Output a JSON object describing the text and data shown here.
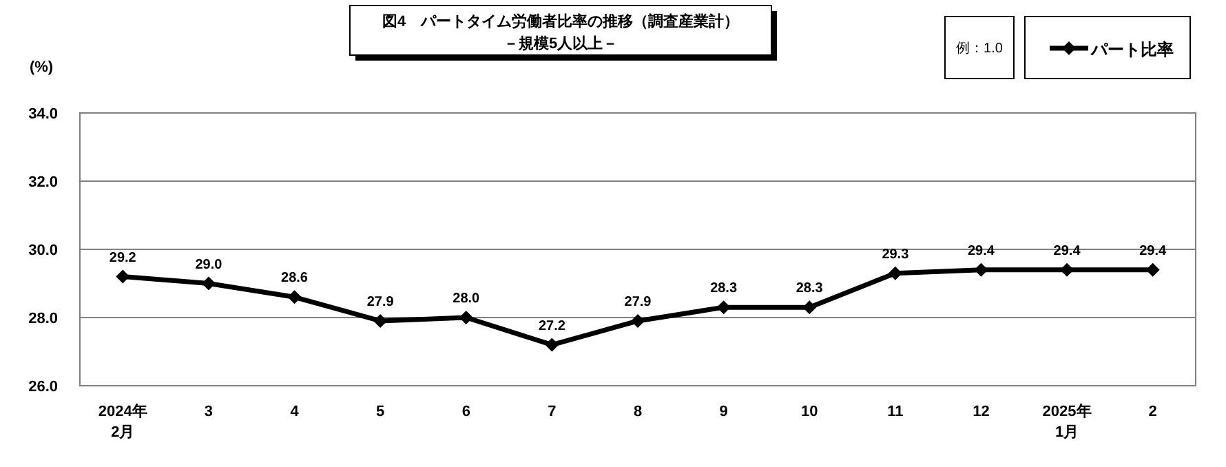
{
  "chart_data": {
    "type": "line",
    "title": "図4　パートタイム労働者比率の推移（調査産業計）",
    "subtitle": "－規模5人以上－",
    "ylabel": "(%)",
    "annotations": [
      "例：1.0"
    ],
    "categories": [
      "2024年\n2月",
      "3",
      "4",
      "5",
      "6",
      "7",
      "8",
      "9",
      "10",
      "11",
      "12",
      "2025年\n1月",
      "2"
    ],
    "series": [
      {
        "name": "パート比率",
        "color": "#000000",
        "values": [
          29.2,
          29.0,
          28.6,
          27.9,
          28.0,
          27.2,
          27.9,
          28.3,
          28.3,
          29.3,
          29.4,
          29.4,
          29.4
        ],
        "value_labels": [
          "29.2",
          "29.0",
          "28.6",
          "27.9",
          "28.0",
          "27.2",
          "27.9",
          "28.3",
          "28.3",
          "29.3",
          "29.4",
          "29.4",
          "29.4"
        ]
      }
    ],
    "ylim": [
      26,
      34
    ],
    "yticks": [
      {
        "value": 26,
        "label": "26.0"
      },
      {
        "value": 28,
        "label": "28.0"
      },
      {
        "value": 30,
        "label": "30.0"
      },
      {
        "value": 32,
        "label": "32.0"
      },
      {
        "value": 34,
        "label": "34.0"
      }
    ],
    "grid": "y",
    "legend": "top right",
    "marker": "diamond",
    "line_style": "solid"
  }
}
